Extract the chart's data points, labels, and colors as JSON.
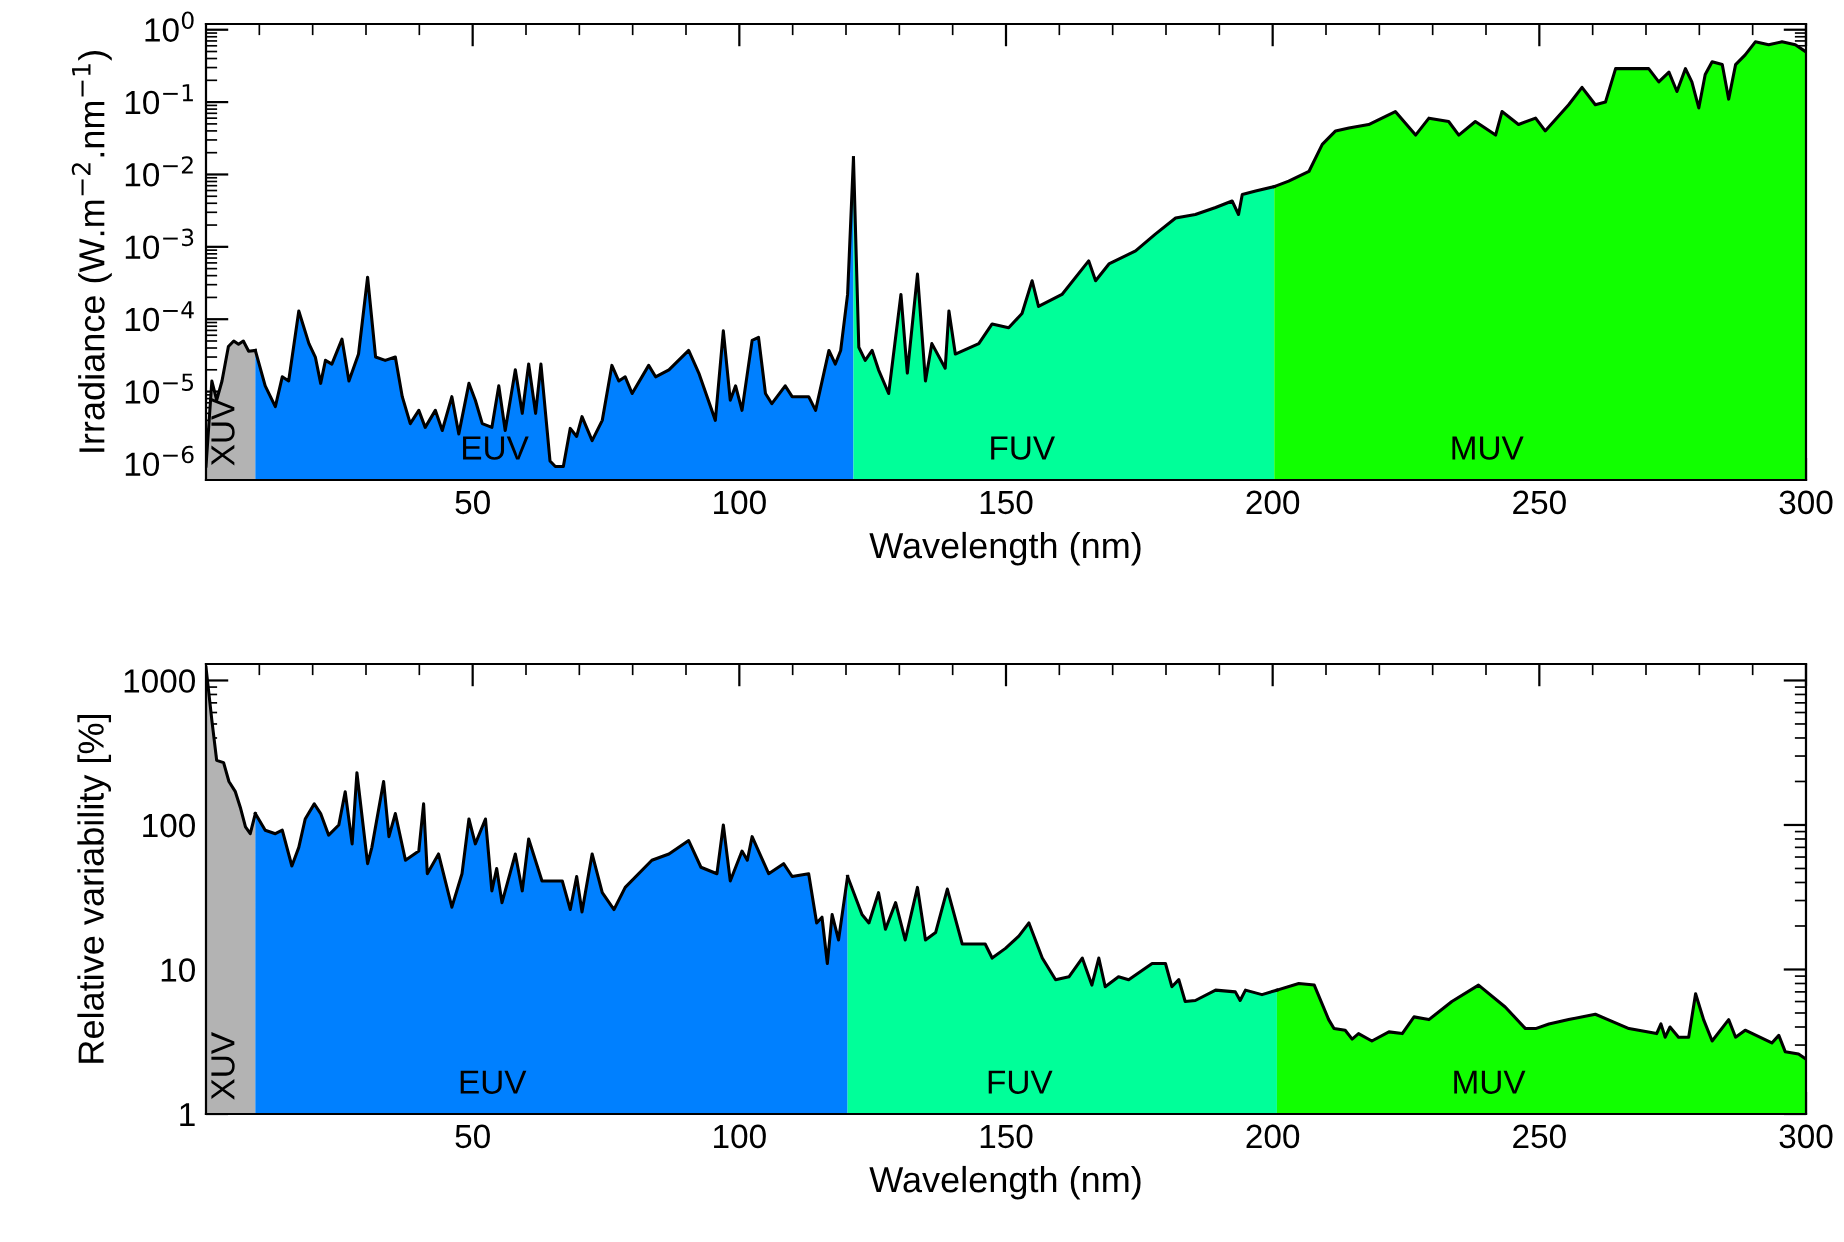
{
  "chart_data": [
    {
      "type": "area",
      "xlabel": "Wavelength (nm)",
      "ylabel": "Irradiance (W.m$^{−2}$.nm$^{−1}$)",
      "log": true,
      "xlim": [
        0,
        300
      ],
      "xticks": [
        50,
        100,
        150,
        200,
        250,
        300
      ],
      "ylim": [
        6e-07,
        1.2
      ],
      "yticks": [
        {
          "value": 1e-06,
          "label": "10$^{−6}$"
        },
        {
          "value": 1e-05,
          "label": "10$^{−5}$"
        },
        {
          "value": 0.0001,
          "label": "10$^{−4}$"
        },
        {
          "value": 0.001,
          "label": "10$^{−3}$"
        },
        {
          "value": 0.01,
          "label": "10$^{−2}$"
        },
        {
          "value": 0.1,
          "label": "10$^{−1}$"
        },
        {
          "value": 1,
          "label": "10$^{0}$"
        }
      ],
      "series": [
        {
          "name": "XUV",
          "color": "#b3b3b3",
          "x": [
            0,
            1.1,
            2.0,
            3.0,
            4.2,
            5.2,
            6.1,
            7.0,
            8.0,
            9.25
          ],
          "values": [
            9.3e-07,
            1.4e-05,
            7.6e-06,
            1.4e-05,
            4.2e-05,
            5e-05,
            4.5e-05,
            5e-05,
            3.6e-05,
            3.7e-05
          ]
        },
        {
          "name": "EUV",
          "color": "#0080ff",
          "x": [
            9.25,
            11.1,
            13.0,
            14.3,
            15.5,
            17.4,
            19.3,
            20.5,
            21.5,
            22.4,
            23.6,
            25.5,
            26.8,
            28.6,
            30.3,
            31.8,
            33.6,
            35.5,
            36.8,
            38.3,
            39.9,
            41.1,
            43.0,
            44.3,
            46.1,
            47.4,
            49.3,
            50.5,
            51.8,
            53.6,
            54.9,
            56.1,
            58.0,
            59.3,
            60.5,
            61.8,
            62.8,
            64.5,
            65.5,
            67.0,
            68.3,
            69.5,
            70.5,
            72.4,
            74.3,
            76.1,
            77.4,
            78.6,
            79.9,
            83.0,
            84.3,
            86.8,
            90.5,
            92.4,
            95.5,
            97.0,
            98.3,
            99.3,
            100.5,
            102.4,
            103.6,
            104.9,
            106.1,
            108.6,
            109.9,
            113.0,
            114.3,
            116.8,
            118.0,
            119.0,
            120.3,
            121.4
          ],
          "values": [
            3.7e-05,
            1.2e-05,
            6.2e-06,
            1.6e-05,
            1.4e-05,
            0.00013,
            4.6e-05,
            3e-05,
            1.3e-05,
            2.7e-05,
            2.4e-05,
            5.3e-05,
            1.4e-05,
            3.3e-05,
            0.00038,
            3e-05,
            2.7e-05,
            3e-05,
            8.5e-06,
            3.6e-06,
            5.5e-06,
            3.2e-06,
            5.5e-06,
            2.9e-06,
            8.5e-06,
            2.6e-06,
            1.3e-05,
            7.6e-06,
            3.6e-06,
            3.2e-06,
            1.2e-05,
            2.9e-06,
            2e-05,
            5e-06,
            2.4e-05,
            5e-06,
            2.4e-05,
            1.1e-06,
            9.2e-07,
            9.2e-07,
            3.1e-06,
            2.4e-06,
            4.5e-06,
            2.1e-06,
            4e-06,
            2.3e-05,
            1.4e-05,
            1.6e-05,
            9.4e-06,
            2.3e-05,
            1.6e-05,
            2e-05,
            3.7e-05,
            1.8e-05,
            4e-06,
            6.9e-05,
            7.6e-06,
            1.2e-05,
            5.5e-06,
            5.1e-05,
            5.6e-05,
            9.4e-06,
            6.8e-06,
            1.2e-05,
            8.5e-06,
            8.5e-06,
            5.5e-06,
            3.7e-05,
            2.4e-05,
            3.7e-05,
            0.00022,
            0.017
          ]
        },
        {
          "name": "FUV",
          "color": "#00ff99",
          "x": [
            121.4,
            122.4,
            123.6,
            124.9,
            126.1,
            128.0,
            130.3,
            131.5,
            133.4,
            134.9,
            136.1,
            138.6,
            139.3,
            140.5,
            144.9,
            147.4,
            150.5,
            153.0,
            154.9,
            156.1,
            160.5,
            165.5,
            166.8,
            169.3,
            174.3,
            178.0,
            181.8,
            185.5,
            189.3,
            192.4,
            193.6,
            194.3,
            196.8,
            200.3
          ],
          "values": [
            0.017,
            4.1e-05,
            2.7e-05,
            3.7e-05,
            2e-05,
            9.4e-06,
            0.00022,
            1.8e-05,
            0.00042,
            1.4e-05,
            4.6e-05,
            2.1e-05,
            0.00013,
            3.3e-05,
            4.6e-05,
            8.6e-05,
            7.6e-05,
            0.00012,
            0.00034,
            0.00015,
            0.00022,
            0.00064,
            0.00034,
            0.00058,
            0.00088,
            0.0015,
            0.0025,
            0.0028,
            0.0035,
            0.0043,
            0.0028,
            0.0053,
            0.0059,
            0.0068
          ]
        },
        {
          "name": "MUV",
          "color": "#11ff00",
          "x": [
            200.3,
            203.0,
            206.8,
            209.3,
            211.8,
            214.3,
            218.0,
            223.0,
            226.8,
            229.3,
            233.0,
            234.9,
            238.0,
            241.8,
            243.0,
            246.1,
            249.3,
            251.1,
            255.5,
            258.0,
            260.5,
            262.4,
            264.3,
            266.8,
            270.5,
            272.4,
            274.3,
            275.8,
            277.4,
            278.6,
            279.9,
            281.1,
            282.4,
            284.3,
            285.5,
            286.8,
            288.6,
            290.5,
            293.0,
            295.5,
            298.0,
            299.9
          ],
          "values": [
            0.0068,
            0.0081,
            0.011,
            0.026,
            0.04,
            0.044,
            0.049,
            0.074,
            0.035,
            0.06,
            0.054,
            0.035,
            0.054,
            0.035,
            0.074,
            0.049,
            0.06,
            0.04,
            0.092,
            0.16,
            0.092,
            0.1,
            0.29,
            0.29,
            0.29,
            0.19,
            0.26,
            0.14,
            0.29,
            0.19,
            0.083,
            0.24,
            0.36,
            0.33,
            0.11,
            0.33,
            0.45,
            0.68,
            0.62,
            0.68,
            0.62,
            0.5
          ]
        }
      ]
    },
    {
      "type": "area",
      "xlabel": "Wavelength (nm)",
      "ylabel": "Relative variability [%]",
      "log": true,
      "xlim": [
        0,
        300
      ],
      "xticks": [
        50,
        100,
        150,
        200,
        250,
        300
      ],
      "ylim": [
        1,
        1300
      ],
      "yticks": [
        1,
        10,
        100,
        1000
      ],
      "series": [
        {
          "name": "XUV",
          "color": "#b3b3b3",
          "x": [
            0,
            1.1,
            2.0,
            3.3,
            4.3,
            5.5,
            6.5,
            7.4,
            8.3,
            9.25
          ],
          "values": [
            1230,
            530,
            280,
            270,
            200,
            170,
            130,
            97,
            87,
            120
          ]
        },
        {
          "name": "EUV",
          "color": "#0080ff",
          "x": [
            9.25,
            11.1,
            13.0,
            14.3,
            16.1,
            17.4,
            18.6,
            20.3,
            21.5,
            23.0,
            24.9,
            26.1,
            27.4,
            28.3,
            30.3,
            31.1,
            33.3,
            34.3,
            35.5,
            37.4,
            39.9,
            40.8,
            41.5,
            43.6,
            46.1,
            48.0,
            49.3,
            50.5,
            52.4,
            53.6,
            54.5,
            55.5,
            58.0,
            59.3,
            60.5,
            63.0,
            66.8,
            68.3,
            69.5,
            70.5,
            72.4,
            74.3,
            76.5,
            78.6,
            83.6,
            86.8,
            90.5,
            92.8,
            95.8,
            97.0,
            98.3,
            100.5,
            101.5,
            102.4,
            105.5,
            108.3,
            109.9,
            113.0,
            114.5,
            115.5,
            116.5,
            117.4,
            118.6,
            120.3
          ],
          "values": [
            120,
            92,
            87,
            92,
            52,
            70,
            110,
            140,
            120,
            85,
            100,
            170,
            74,
            230,
            54,
            70,
            200,
            83,
            120,
            57,
            66,
            140,
            46,
            63,
            27,
            46,
            110,
            74,
            110,
            35,
            50,
            29,
            63,
            35,
            80,
            41,
            41,
            26,
            44,
            25,
            63,
            34,
            26,
            37,
            57,
            63,
            78,
            51,
            46,
            100,
            41,
            66,
            57,
            83,
            46,
            54,
            44,
            46,
            21,
            23,
            11,
            24,
            16,
            44
          ]
        },
        {
          "name": "FUV",
          "color": "#00ff99",
          "x": [
            120.3,
            123.0,
            124.3,
            126.1,
            127.4,
            129.3,
            131.1,
            133.4,
            134.9,
            136.8,
            139.0,
            141.8,
            146.1,
            147.4,
            149.9,
            152.4,
            154.3,
            156.8,
            159.3,
            161.8,
            164.3,
            166.1,
            167.4,
            168.6,
            171.1,
            173.0,
            177.4,
            179.9,
            181.1,
            182.4,
            183.6,
            185.5,
            189.3,
            193.0,
            193.9,
            194.9,
            198.0,
            200.8
          ],
          "values": [
            44,
            24,
            21,
            34,
            19,
            29,
            16,
            37,
            16,
            18,
            36,
            15,
            15,
            12,
            14,
            17,
            21,
            12,
            8.5,
            8.9,
            12,
            7.8,
            12,
            7.6,
            8.9,
            8.5,
            11,
            11,
            7.6,
            8.5,
            6.0,
            6.1,
            7.2,
            7.0,
            6.1,
            7.2,
            6.7,
            7.2
          ]
        },
        {
          "name": "MUV",
          "color": "#11ff00",
          "x": [
            200.8,
            204.9,
            207.8,
            210.5,
            211.5,
            213.6,
            214.9,
            216.1,
            218.6,
            221.8,
            224.3,
            226.5,
            229.3,
            233.6,
            238.6,
            243.6,
            247.4,
            249.3,
            251.8,
            255.5,
            260.5,
            266.8,
            272.0,
            272.8,
            273.6,
            274.5,
            276.1,
            278.0,
            279.3,
            280.8,
            282.4,
            285.5,
            286.8,
            288.6,
            293.6,
            294.9,
            296.1,
            298.6,
            300.0
          ],
          "values": [
            7.2,
            8.0,
            7.8,
            4.5,
            3.9,
            3.8,
            3.3,
            3.6,
            3.2,
            3.7,
            3.6,
            4.7,
            4.5,
            6.0,
            7.8,
            5.5,
            3.9,
            3.9,
            4.2,
            4.5,
            4.9,
            3.9,
            3.6,
            4.2,
            3.4,
            4.0,
            3.4,
            3.4,
            6.8,
            4.5,
            3.2,
            4.5,
            3.4,
            3.8,
            3.1,
            3.5,
            2.7,
            2.6,
            2.4
          ]
        }
      ]
    }
  ]
}
